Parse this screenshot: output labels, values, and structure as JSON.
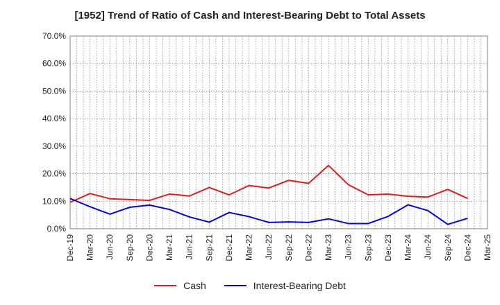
{
  "chart_data": {
    "type": "line",
    "title": "[1952]  Trend of Ratio of Cash and Interest-Bearing Debt to Total Assets",
    "xlabel": "",
    "ylabel": "",
    "ylim": [
      0,
      70
    ],
    "y_ticks": [
      0,
      10,
      20,
      30,
      40,
      50,
      60,
      70
    ],
    "y_tick_labels": [
      "0.0%",
      "10.0%",
      "20.0%",
      "30.0%",
      "40.0%",
      "50.0%",
      "60.0%",
      "70.0%"
    ],
    "x_tick_labels": [
      "Dec-19",
      "Mar-20",
      "Jun-20",
      "Sep-20",
      "Dec-20",
      "Mar-21",
      "Jun-21",
      "Sep-21",
      "Dec-21",
      "Mar-22",
      "Jun-22",
      "Sep-22",
      "Dec-22",
      "Mar-23",
      "Jun-23",
      "Sep-23",
      "Dec-23",
      "Mar-24",
      "Jun-24",
      "Sep-24",
      "Dec-24",
      "Mar-25"
    ],
    "categories": [
      "Dec-19",
      "Mar-20",
      "Jun-20",
      "Sep-20",
      "Dec-20",
      "Mar-21",
      "Jun-21",
      "Sep-21",
      "Dec-21",
      "Mar-22",
      "Jun-22",
      "Sep-22",
      "Dec-22",
      "Mar-23",
      "Jun-23",
      "Sep-23",
      "Dec-23",
      "Mar-24",
      "Jun-24",
      "Sep-24",
      "Dec-24"
    ],
    "grid": true,
    "legend_position": "bottom",
    "series": [
      {
        "name": "Cash",
        "color": "#e31a1c",
        "values": [
          9.6,
          12.8,
          10.9,
          10.6,
          10.3,
          12.6,
          11.9,
          15.0,
          12.3,
          15.7,
          14.8,
          17.6,
          16.5,
          23.0,
          16.0,
          12.3,
          12.6,
          11.8,
          11.5,
          14.3,
          11.0
        ]
      },
      {
        "name": "Interest-Bearing Debt",
        "color": "#0000ee",
        "values": [
          11.0,
          8.0,
          5.3,
          7.8,
          8.6,
          7.0,
          4.3,
          2.4,
          5.9,
          4.4,
          2.3,
          2.5,
          2.3,
          3.6,
          1.9,
          1.9,
          4.5,
          8.7,
          6.6,
          1.6,
          3.8
        ]
      }
    ]
  }
}
